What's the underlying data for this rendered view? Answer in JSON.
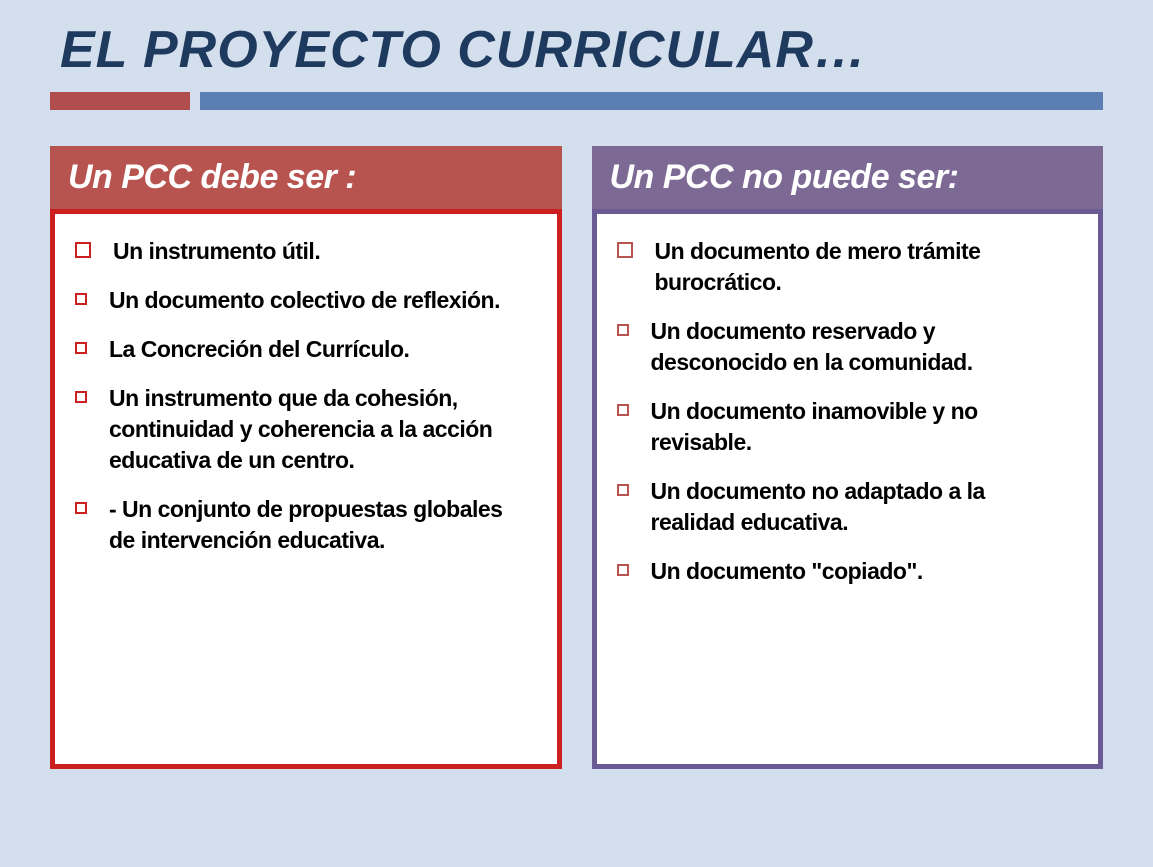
{
  "title": "EL PROYECTO CURRICULAR…",
  "colors": {
    "background": "#d4dfee",
    "title_text": "#1f3a5f",
    "divider_red": "#b24d4d",
    "divider_blue": "#5c7fb3",
    "left_header_bg": "#b85450",
    "right_header_bg": "#7d6a94",
    "left_border": "#cc1f1f",
    "right_border": "#6b5b95",
    "left_bullet": "#cc1f1f",
    "right_bullet": "#b85450",
    "body_bg": "#ffffff",
    "text": "#000000",
    "header_text": "#ffffff"
  },
  "typography": {
    "title_fontsize": 52,
    "title_style": "bold italic",
    "header_fontsize": 34,
    "header_style": "bold italic",
    "item_fontsize": 23,
    "item_weight": "bold"
  },
  "left": {
    "header": "Un PCC debe ser :",
    "items": [
      {
        "size": "big",
        "text": "Un instrumento útil."
      },
      {
        "size": "small",
        "text": "Un documento  colectivo de reflexión."
      },
      {
        "size": "small",
        "text": "La Concreción del Currículo."
      },
      {
        "size": "small",
        "text": "Un instrumento que da cohesión, continuidad y coherencia a la acción educativa de un centro."
      },
      {
        "size": "small",
        "text": "- Un conjunto de propuestas globales de intervención educativa."
      }
    ]
  },
  "right": {
    "header": "Un PCC no puede ser:",
    "items": [
      {
        "size": "big",
        "text": "Un documento de mero trámite burocrático."
      },
      {
        "size": "small",
        "text": "Un documento reservado y desconocido en la comunidad."
      },
      {
        "size": "small",
        "text": "Un documento inamovible y no revisable."
      },
      {
        "size": "small",
        "text": "Un documento no adaptado a la realidad educativa."
      },
      {
        "size": "small",
        "text": "Un documento \"copiado\"."
      }
    ]
  }
}
